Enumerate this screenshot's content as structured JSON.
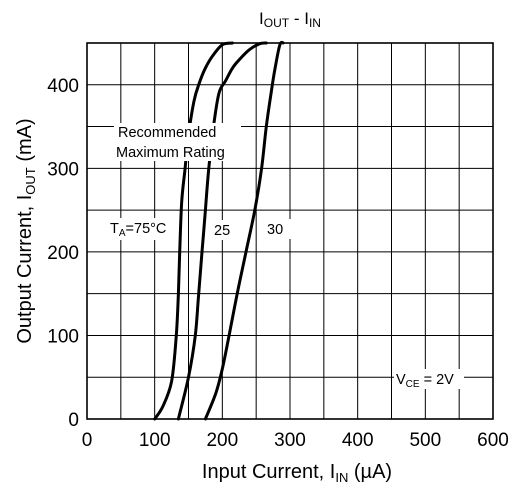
{
  "chart_data": {
    "type": "line",
    "title": "I_OUT - I_IN",
    "title_parts": {
      "main_out": "I",
      "sub_out": "OUT",
      "sep": " - ",
      "main_in": "I",
      "sub_in": "IN"
    },
    "xlabel": "Input Current, I_IN (µA)",
    "xlabel_parts": {
      "pre": "Input Current, I",
      "sub": "IN",
      "post": " (µA)"
    },
    "ylabel": "Output Current, I_OUT (mA)",
    "ylabel_parts": {
      "pre": "Output Current, I",
      "sub": "OUT",
      "post": " (mA)"
    },
    "xlim": [
      0,
      600
    ],
    "ylim": [
      0,
      450
    ],
    "x_ticks": [
      0,
      100,
      200,
      300,
      400,
      500,
      600
    ],
    "y_ticks": [
      0,
      100,
      200,
      300,
      400
    ],
    "x_grid_step": 50,
    "y_grid_step": 50,
    "grid": true,
    "series": [
      {
        "name": "75°C",
        "x": [
          100,
          112,
          125,
          132,
          135,
          137,
          140,
          145,
          150,
          158,
          165,
          175,
          186,
          200,
          215
        ],
        "y": [
          0,
          15,
          45,
          100,
          150,
          200,
          260,
          300,
          340,
          380,
          400,
          420,
          435,
          448,
          450
        ]
      },
      {
        "name": "25",
        "x": [
          135,
          150,
          160,
          165,
          170,
          175,
          180,
          187,
          195,
          205,
          215,
          225,
          240,
          255,
          265
        ],
        "y": [
          0,
          50,
          100,
          150,
          200,
          250,
          300,
          350,
          390,
          405,
          420,
          430,
          442,
          449,
          450
        ]
      },
      {
        "name": "30",
        "x": [
          175,
          190,
          200,
          210,
          222,
          235,
          248,
          258,
          265,
          272,
          278,
          285,
          290
        ],
        "y": [
          0,
          30,
          60,
          100,
          150,
          200,
          250,
          300,
          350,
          390,
          420,
          448,
          450
        ]
      }
    ],
    "annotations": {
      "recommended_line1": "Recommended",
      "recommended_line2": "Maximum Rating",
      "ta_pre": "T",
      "ta_sub": "A",
      "ta_post": "=75°C",
      "label_25": "25",
      "label_30": "30",
      "vce_pre": "V",
      "vce_sub": "CE",
      "vce_post": " = 2V"
    }
  }
}
